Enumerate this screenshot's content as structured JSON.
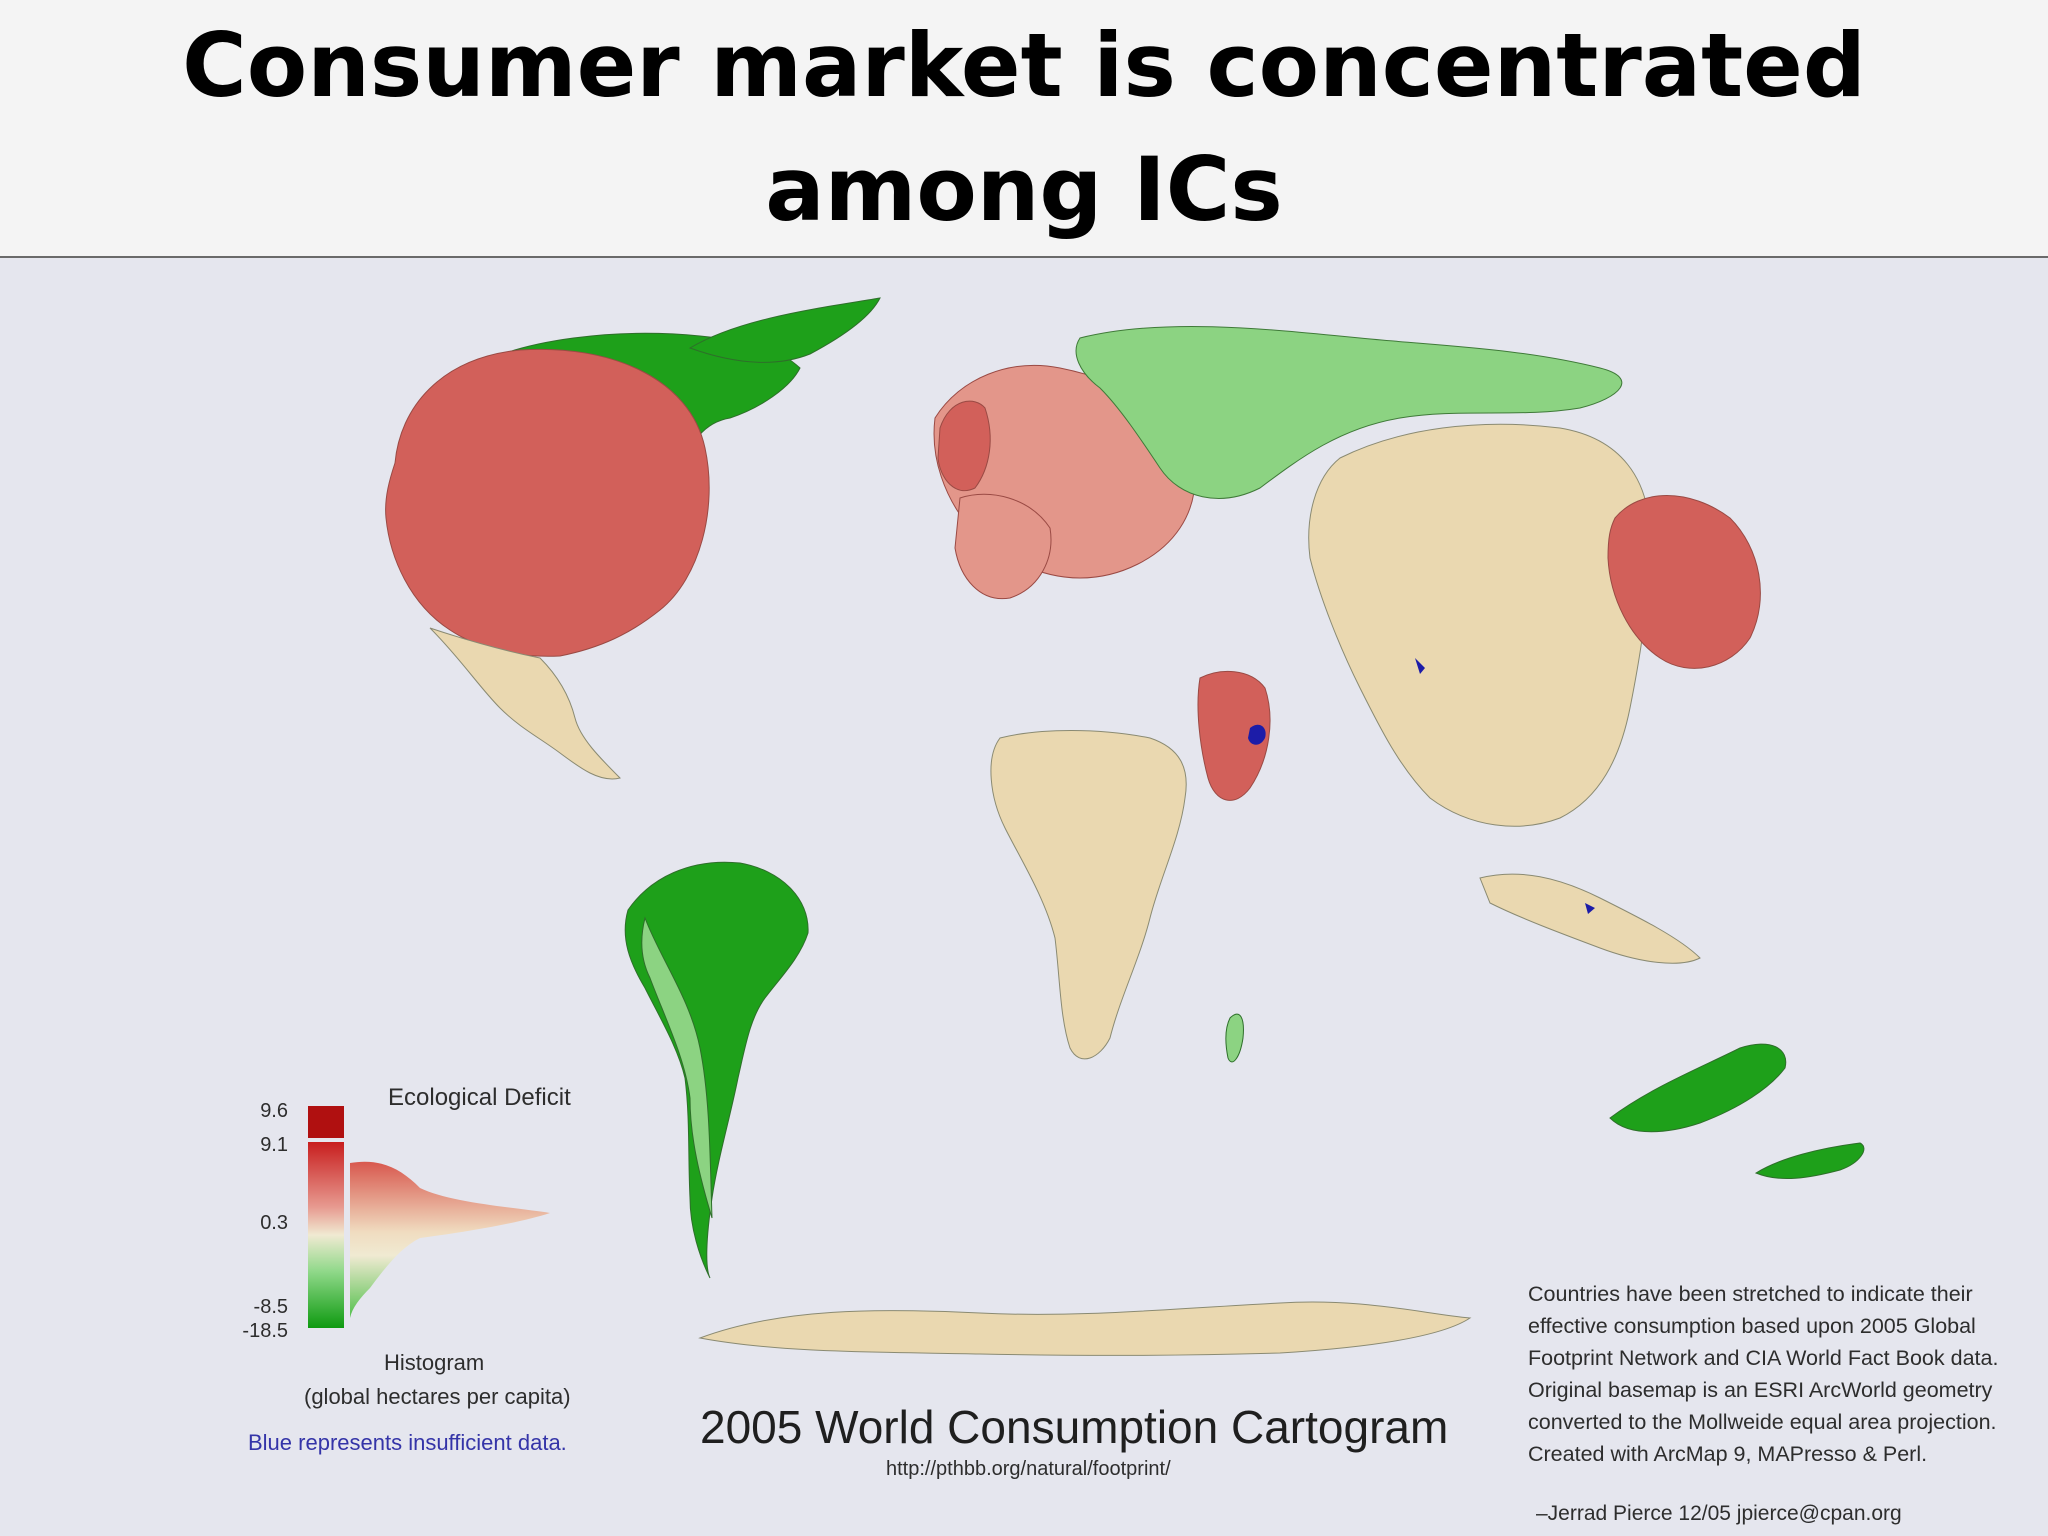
{
  "slide": {
    "title": "Consumer market is concentrated among ICs"
  },
  "map": {
    "title": "2005 World Consumption Cartogram",
    "url": "http://pthbb.org/natural/footprint/",
    "colors": {
      "background": "#e5e6ee",
      "deficit_high": "#d2605a",
      "deficit_mid": "#e3968a",
      "neutral": "#ead8b0",
      "surplus_light": "#8cd382",
      "surplus_high": "#1ea01a",
      "insufficient_data": "#1c1ca8"
    },
    "legend": {
      "title": "Ecological Deficit",
      "ticks": [
        "9.6",
        "9.1",
        "0.3",
        "-8.5",
        "-18.5"
      ],
      "histogram_label": "Histogram",
      "units": "(global hectares per capita)",
      "note": "Blue represents insufficient data."
    },
    "caption": {
      "lines": [
        "Countries have been stretched to indicate their",
        "effective consumption based upon 2005 Global",
        "Footprint Network and CIA World Fact Book data.",
        "Original basemap is an ESRI ArcWorld geometry",
        "converted to the Mollweide equal area projection.",
        "Created with ArcMap 9, MAPresso & Perl."
      ],
      "signature": "–Jerrad Pierce 12/05 jpierce@cpan.org"
    }
  }
}
